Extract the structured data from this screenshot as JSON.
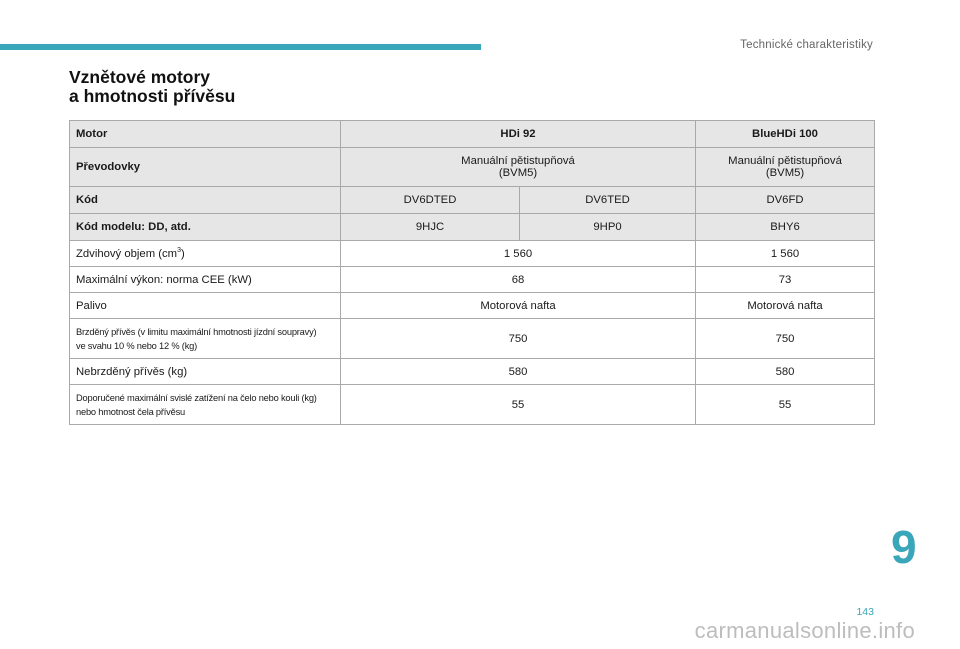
{
  "header": {
    "section": "Technické charakteristiky"
  },
  "title": {
    "line1": "Vznětové motory",
    "line2": "a hmotnosti přívěsu"
  },
  "table": {
    "motor": {
      "label": "Motor",
      "hdi92": "HDi 92",
      "bluehdi100": "BlueHDi 100"
    },
    "gearbox": {
      "label": "Převodovky",
      "hdi92_line1": "Manuální pětistupňová",
      "hdi92_line2": "(BVM5)",
      "bluehdi100_line1": "Manuální pětistupňová",
      "bluehdi100_line2": "(BVM5)"
    },
    "code": {
      "label": "Kód",
      "v1": "DV6DTED",
      "v2": "DV6TED",
      "v3": "DV6FD"
    },
    "model_code": {
      "label": "Kód modelu: DD, atd.",
      "v1": "9HJC",
      "v2": "9HP0",
      "v3": "BHY6"
    },
    "displacement": {
      "label_pre": "Zdvihový objem (cm",
      "label_sup": "3",
      "label_post": ")",
      "hdi92": "1 560",
      "bluehdi100": "1 560"
    },
    "power": {
      "label": "Maximální výkon: norma CEE (kW)",
      "hdi92": "68",
      "bluehdi100": "73"
    },
    "fuel": {
      "label": "Palivo",
      "hdi92": "Motorová nafta",
      "bluehdi100": "Motorová nafta"
    },
    "braked": {
      "label_line1": "Brzděný přívěs (v limitu maximální hmotnosti jízdní soupravy)",
      "label_line2": "ve svahu 10 % nebo 12 % (kg)",
      "hdi92": "750",
      "bluehdi100": "750"
    },
    "unbraked": {
      "label": "Nebrzděný přívěs (kg)",
      "hdi92": "580",
      "bluehdi100": "580"
    },
    "noseweight": {
      "label_line1": "Doporučené maximální svislé zatížení na čelo nebo kouli (kg)",
      "label_line2": "nebo hmotnost čela přívěsu",
      "hdi92": "55",
      "bluehdi100": "55"
    }
  },
  "chapter": "9",
  "page_number": "143",
  "watermark": "carmanualsonline.info",
  "colors": {
    "accent": "#3aa6b9",
    "header_bg": "#e6e6e6",
    "border": "#a9a9a9"
  }
}
